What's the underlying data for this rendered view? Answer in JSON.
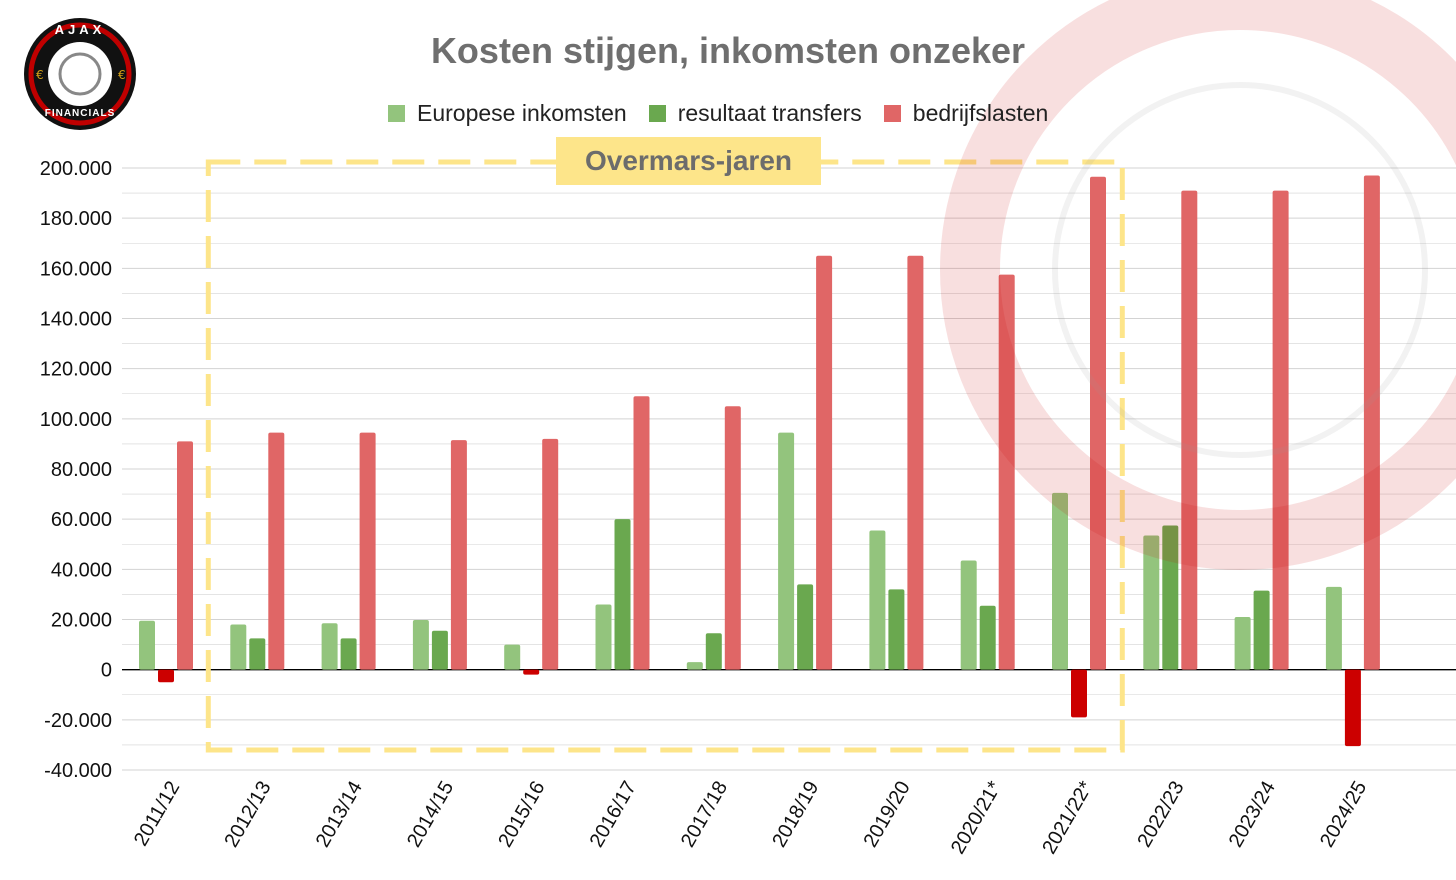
{
  "title": "Kosten stijgen, inkomsten onzeker",
  "logo": {
    "top_text": "AJAX",
    "bottom_text": "FINANCIALS"
  },
  "annotation": {
    "label": "Overmars-jaren",
    "from_category": "2012/13",
    "to_category": "2021/22*"
  },
  "colors": {
    "europese": "#93c47d",
    "transfers": "#6aa84f",
    "lasten": "#e06666",
    "negative": "#cc0000",
    "box": "#fde58a",
    "grid": "#d3d3d3"
  },
  "chart_data": {
    "type": "bar",
    "title": "Kosten stijgen, inkomsten onzeker",
    "xlabel": "",
    "ylabel": "",
    "ylim": [
      -40000,
      200000
    ],
    "yticks": [
      200000,
      180000,
      160000,
      140000,
      120000,
      100000,
      80000,
      60000,
      40000,
      20000,
      0,
      -20000,
      -40000
    ],
    "ytick_labels": [
      "200.000",
      "180.000",
      "160.000",
      "140.000",
      "120.000",
      "100.000",
      "80.000",
      "60.000",
      "40.000",
      "20.000",
      "0",
      "-20.000",
      "-40.000"
    ],
    "categories": [
      "2011/12",
      "2012/13",
      "2013/14",
      "2014/15",
      "2015/16",
      "2016/17",
      "2017/18",
      "2018/19",
      "2019/20",
      "2020/21*",
      "2021/22*",
      "2022/23",
      "2023/24",
      "2024/25"
    ],
    "legend_position": "top-center",
    "series": [
      {
        "name": "Europese inkomsten",
        "color_key": "europese",
        "values": [
          19500,
          18000,
          18500,
          19800,
          10000,
          26000,
          3000,
          94500,
          55500,
          43500,
          70500,
          53500,
          21000,
          33000
        ]
      },
      {
        "name": "resultaat transfers",
        "color_key": "transfers",
        "values": [
          -5000,
          12500,
          12500,
          15500,
          -2000,
          60000,
          14500,
          34000,
          32000,
          25500,
          -19000,
          57500,
          31500,
          -30500
        ]
      },
      {
        "name": "bedrijfslasten",
        "color_key": "lasten",
        "values": [
          91000,
          94500,
          94500,
          91500,
          92000,
          109000,
          105000,
          165000,
          165000,
          157500,
          196500,
          191000,
          191000,
          197000
        ]
      }
    ]
  }
}
